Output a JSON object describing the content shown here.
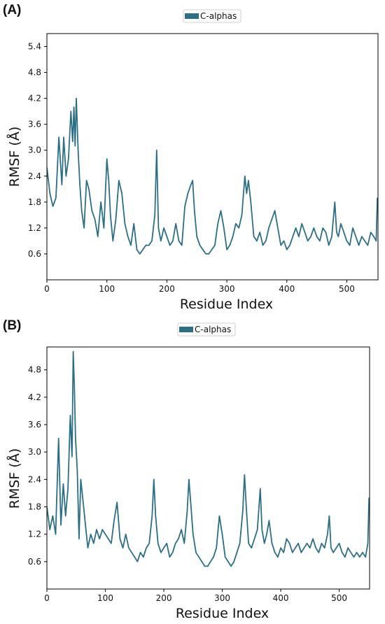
{
  "panels": [
    "(A)",
    "(B)"
  ],
  "colors": {
    "series": "#2b6f87",
    "axis": "#000000",
    "legend_border": "#cfcfcf"
  },
  "chart_data": [
    {
      "type": "line",
      "panel": "(A)",
      "xlabel": "Residue Index",
      "ylabel": "RMSF (Å)",
      "xlim": [
        0,
        552
      ],
      "ylim": [
        0.0,
        5.7
      ],
      "xticks": [
        0,
        100,
        200,
        300,
        400,
        500
      ],
      "yticks": [
        0.6,
        1.2,
        1.8,
        2.4,
        3.0,
        3.6,
        4.2,
        4.8,
        5.4
      ],
      "legend": {
        "label": "C-alphas",
        "position": "top-center"
      },
      "series": [
        {
          "name": "C-alphas",
          "x": [
            0,
            5,
            10,
            15,
            20,
            25,
            28,
            32,
            36,
            40,
            43,
            45,
            47,
            49,
            52,
            55,
            58,
            62,
            66,
            70,
            75,
            80,
            85,
            90,
            95,
            100,
            103,
            106,
            110,
            115,
            120,
            125,
            130,
            135,
            140,
            145,
            150,
            155,
            160,
            165,
            170,
            175,
            180,
            183,
            186,
            190,
            195,
            200,
            205,
            210,
            215,
            220,
            225,
            230,
            235,
            240,
            243,
            246,
            250,
            255,
            260,
            265,
            270,
            275,
            280,
            285,
            290,
            295,
            300,
            305,
            310,
            315,
            320,
            325,
            330,
            333,
            336,
            340,
            345,
            350,
            355,
            360,
            365,
            370,
            375,
            380,
            385,
            390,
            395,
            400,
            405,
            410,
            415,
            420,
            425,
            430,
            435,
            440,
            445,
            450,
            455,
            460,
            465,
            470,
            475,
            480,
            483,
            486,
            490,
            495,
            500,
            505,
            510,
            515,
            520,
            525,
            530,
            535,
            540,
            545,
            549,
            551
          ],
          "y": [
            2.6,
            2.0,
            1.7,
            1.9,
            3.3,
            2.2,
            3.3,
            2.4,
            2.8,
            3.9,
            3.2,
            4.0,
            3.1,
            4.2,
            3.0,
            2.2,
            1.6,
            1.2,
            2.3,
            2.1,
            1.6,
            1.4,
            1.0,
            1.8,
            1.2,
            2.8,
            2.3,
            1.5,
            0.9,
            1.4,
            2.3,
            2.0,
            1.3,
            1.0,
            0.8,
            1.3,
            0.7,
            0.6,
            0.7,
            0.8,
            0.8,
            0.9,
            1.5,
            3.0,
            1.2,
            0.9,
            1.2,
            1.0,
            0.8,
            0.9,
            1.3,
            0.9,
            0.8,
            1.7,
            2.0,
            2.2,
            2.3,
            1.6,
            1.0,
            0.8,
            0.7,
            0.6,
            0.6,
            0.7,
            0.8,
            1.3,
            1.6,
            1.2,
            0.7,
            0.8,
            1.0,
            1.3,
            1.2,
            1.5,
            2.4,
            2.0,
            2.3,
            1.8,
            1.0,
            0.9,
            1.1,
            0.8,
            0.9,
            1.2,
            1.4,
            1.6,
            1.2,
            0.8,
            0.9,
            0.7,
            0.8,
            1.0,
            1.2,
            1.0,
            1.3,
            1.1,
            0.9,
            1.0,
            1.2,
            1.0,
            0.9,
            1.2,
            1.1,
            0.8,
            1.0,
            1.8,
            1.1,
            1.0,
            1.3,
            1.1,
            0.9,
            0.8,
            1.2,
            1.0,
            0.8,
            1.0,
            0.9,
            0.8,
            1.1,
            1.0,
            0.9,
            1.9
          ]
        }
      ]
    },
    {
      "type": "line",
      "panel": "(B)",
      "xlabel": "Residue Index",
      "ylabel": "RMSF (Å)",
      "xlim": [
        0,
        552
      ],
      "ylim": [
        0.0,
        5.3
      ],
      "xticks": [
        0,
        100,
        200,
        300,
        400,
        500
      ],
      "yticks": [
        0.6,
        1.2,
        1.8,
        2.4,
        3.0,
        3.6,
        4.2,
        4.8
      ],
      "legend": {
        "label": "C-alphas",
        "position": "top-center"
      },
      "series": [
        {
          "name": "C-alphas",
          "x": [
            0,
            5,
            10,
            15,
            20,
            24,
            28,
            32,
            36,
            40,
            43,
            45,
            47,
            49,
            52,
            55,
            58,
            62,
            66,
            70,
            75,
            80,
            85,
            90,
            95,
            100,
            105,
            110,
            115,
            120,
            125,
            130,
            135,
            140,
            145,
            150,
            155,
            160,
            165,
            170,
            175,
            180,
            183,
            186,
            190,
            195,
            200,
            205,
            210,
            215,
            220,
            225,
            230,
            235,
            240,
            243,
            246,
            250,
            255,
            260,
            265,
            270,
            275,
            280,
            285,
            290,
            295,
            300,
            305,
            310,
            315,
            320,
            325,
            330,
            335,
            338,
            341,
            345,
            350,
            355,
            360,
            365,
            368,
            372,
            376,
            380,
            385,
            390,
            395,
            400,
            405,
            410,
            415,
            420,
            425,
            430,
            435,
            440,
            445,
            450,
            455,
            460,
            465,
            470,
            475,
            480,
            483,
            486,
            490,
            495,
            500,
            505,
            510,
            515,
            520,
            525,
            530,
            535,
            540,
            545,
            549,
            551
          ],
          "y": [
            1.8,
            1.3,
            1.6,
            1.2,
            3.3,
            1.4,
            2.3,
            1.6,
            2.2,
            3.8,
            2.9,
            5.2,
            4.4,
            3.3,
            2.6,
            1.1,
            2.4,
            1.9,
            1.4,
            0.9,
            1.2,
            1.0,
            1.3,
            1.1,
            1.3,
            1.2,
            1.1,
            1.0,
            1.5,
            1.9,
            1.1,
            0.9,
            1.2,
            0.9,
            0.8,
            0.7,
            0.6,
            0.8,
            0.7,
            0.9,
            1.0,
            1.6,
            2.4,
            1.6,
            1.0,
            0.8,
            0.9,
            1.0,
            0.7,
            0.8,
            1.0,
            1.1,
            1.3,
            1.0,
            1.7,
            2.4,
            1.9,
            1.2,
            0.8,
            0.7,
            0.6,
            0.5,
            0.5,
            0.6,
            0.7,
            0.9,
            1.6,
            1.2,
            0.7,
            0.6,
            0.5,
            0.6,
            0.8,
            1.0,
            1.7,
            2.5,
            1.8,
            1.0,
            0.9,
            1.1,
            1.3,
            2.2,
            1.3,
            1.0,
            1.2,
            1.5,
            1.0,
            0.8,
            0.7,
            0.9,
            0.8,
            1.1,
            1.0,
            0.8,
            0.9,
            1.0,
            0.8,
            0.9,
            1.0,
            0.9,
            1.1,
            0.9,
            0.8,
            1.0,
            0.9,
            1.2,
            1.6,
            0.9,
            0.8,
            0.9,
            1.0,
            0.8,
            0.7,
            0.9,
            0.8,
            0.7,
            0.8,
            0.7,
            0.8,
            0.7,
            1.0,
            2.0
          ]
        }
      ]
    }
  ]
}
